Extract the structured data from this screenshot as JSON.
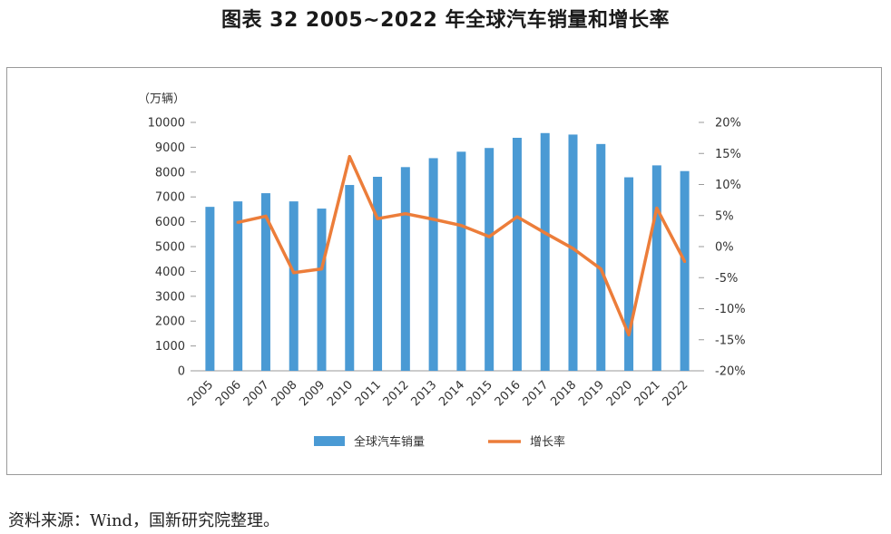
{
  "title": "图表 32  2005~2022 年全球汽车销量和增长率",
  "source": "资料来源：Wind，国新研究院整理。",
  "colors": {
    "bar": "#4a9ad4",
    "line": "#ec7d3a",
    "axis": "#999999"
  },
  "chart_data": {
    "type": "bar",
    "categories": [
      "2005",
      "2006",
      "2007",
      "2008",
      "2009",
      "2010",
      "2011",
      "2012",
      "2013",
      "2014",
      "2015",
      "2016",
      "2017",
      "2018",
      "2019",
      "2020",
      "2021",
      "2022"
    ],
    "y_unit_label": "（万辆）",
    "ylim": [
      0,
      10000
    ],
    "yticks": [
      "0",
      "1000",
      "2000",
      "3000",
      "4000",
      "5000",
      "6000",
      "7000",
      "8000",
      "9000",
      "10000"
    ],
    "y2lim": [
      -20,
      20
    ],
    "y2ticks": [
      "-20%",
      "-15%",
      "-10%",
      "-5%",
      "0%",
      "5%",
      "10%",
      "15%",
      "20%"
    ],
    "grid": false,
    "legend_position": "bottom",
    "series": [
      {
        "name": "全球汽车销量",
        "type": "bar",
        "axis": "left",
        "values": [
          6600,
          6820,
          7150,
          6820,
          6530,
          7480,
          7810,
          8200,
          8560,
          8820,
          8970,
          9380,
          9570,
          9510,
          9130,
          7790,
          8270,
          8040
        ]
      },
      {
        "name": "增长率",
        "type": "line",
        "axis": "right",
        "values": [
          null,
          3.9,
          4.9,
          -4.2,
          -3.6,
          14.5,
          4.5,
          5.3,
          4.4,
          3.4,
          1.6,
          4.8,
          2.2,
          -0.3,
          -3.6,
          -14.2,
          6.2,
          -2.4
        ]
      }
    ]
  }
}
